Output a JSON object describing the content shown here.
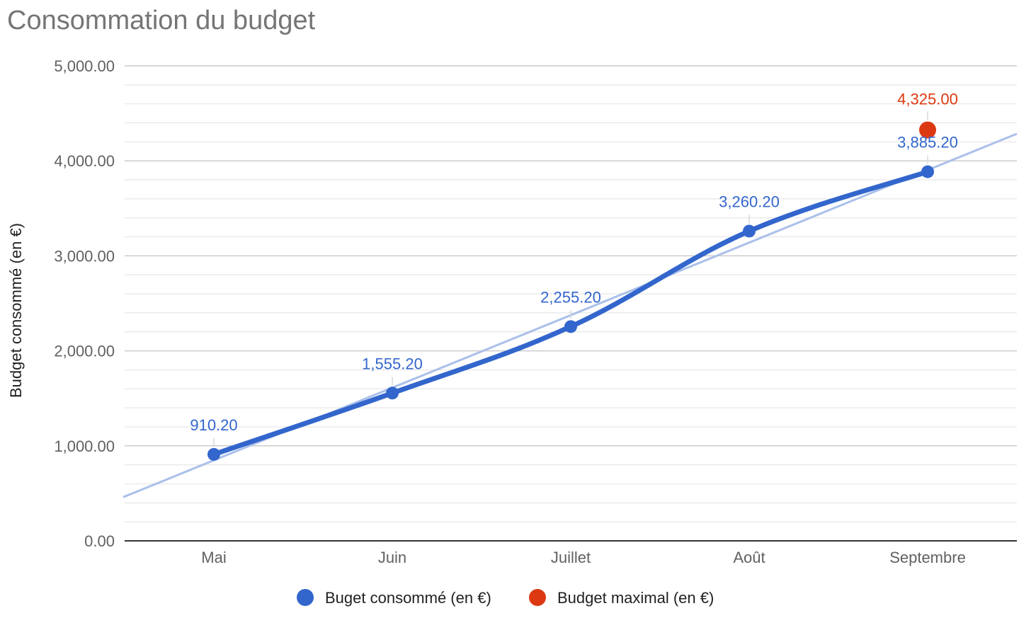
{
  "chart_data": {
    "type": "line",
    "title": "Consommation du budget",
    "xlabel": "",
    "ylabel": "Budget consommé (en €)",
    "ylim": [
      0,
      5000
    ],
    "y_major_ticks": [
      0,
      1000,
      2000,
      3000,
      4000,
      5000
    ],
    "y_tick_labels": [
      "0.00",
      "1,000.00",
      "2,000.00",
      "3,000.00",
      "4,000.00",
      "5,000.00"
    ],
    "y_minor_step": 200,
    "grid": true,
    "categories": [
      "Mai",
      "Juin",
      "Juillet",
      "Août",
      "Septembre"
    ],
    "series": [
      {
        "name": "Buget consommé (en €)",
        "color": "#3366cc",
        "values": [
          910.2,
          1555.2,
          2255.2,
          3260.2,
          3885.2
        ],
        "labels": [
          "910.20",
          "1,555.20",
          "2,255.20",
          "3,260.20",
          "3,885.20"
        ]
      },
      {
        "name": "Budget maximal (en €)",
        "color": "#dc3912",
        "values": [
          null,
          null,
          null,
          null,
          4325.0
        ],
        "labels": [
          "",
          "",
          "",
          "",
          "4,325.00"
        ]
      }
    ],
    "trendline": {
      "series": "Buget consommé (en €)",
      "type": "linear",
      "color": "#aac0ea",
      "start_value": 460,
      "end_value": 4285
    },
    "legend_position": "bottom"
  }
}
